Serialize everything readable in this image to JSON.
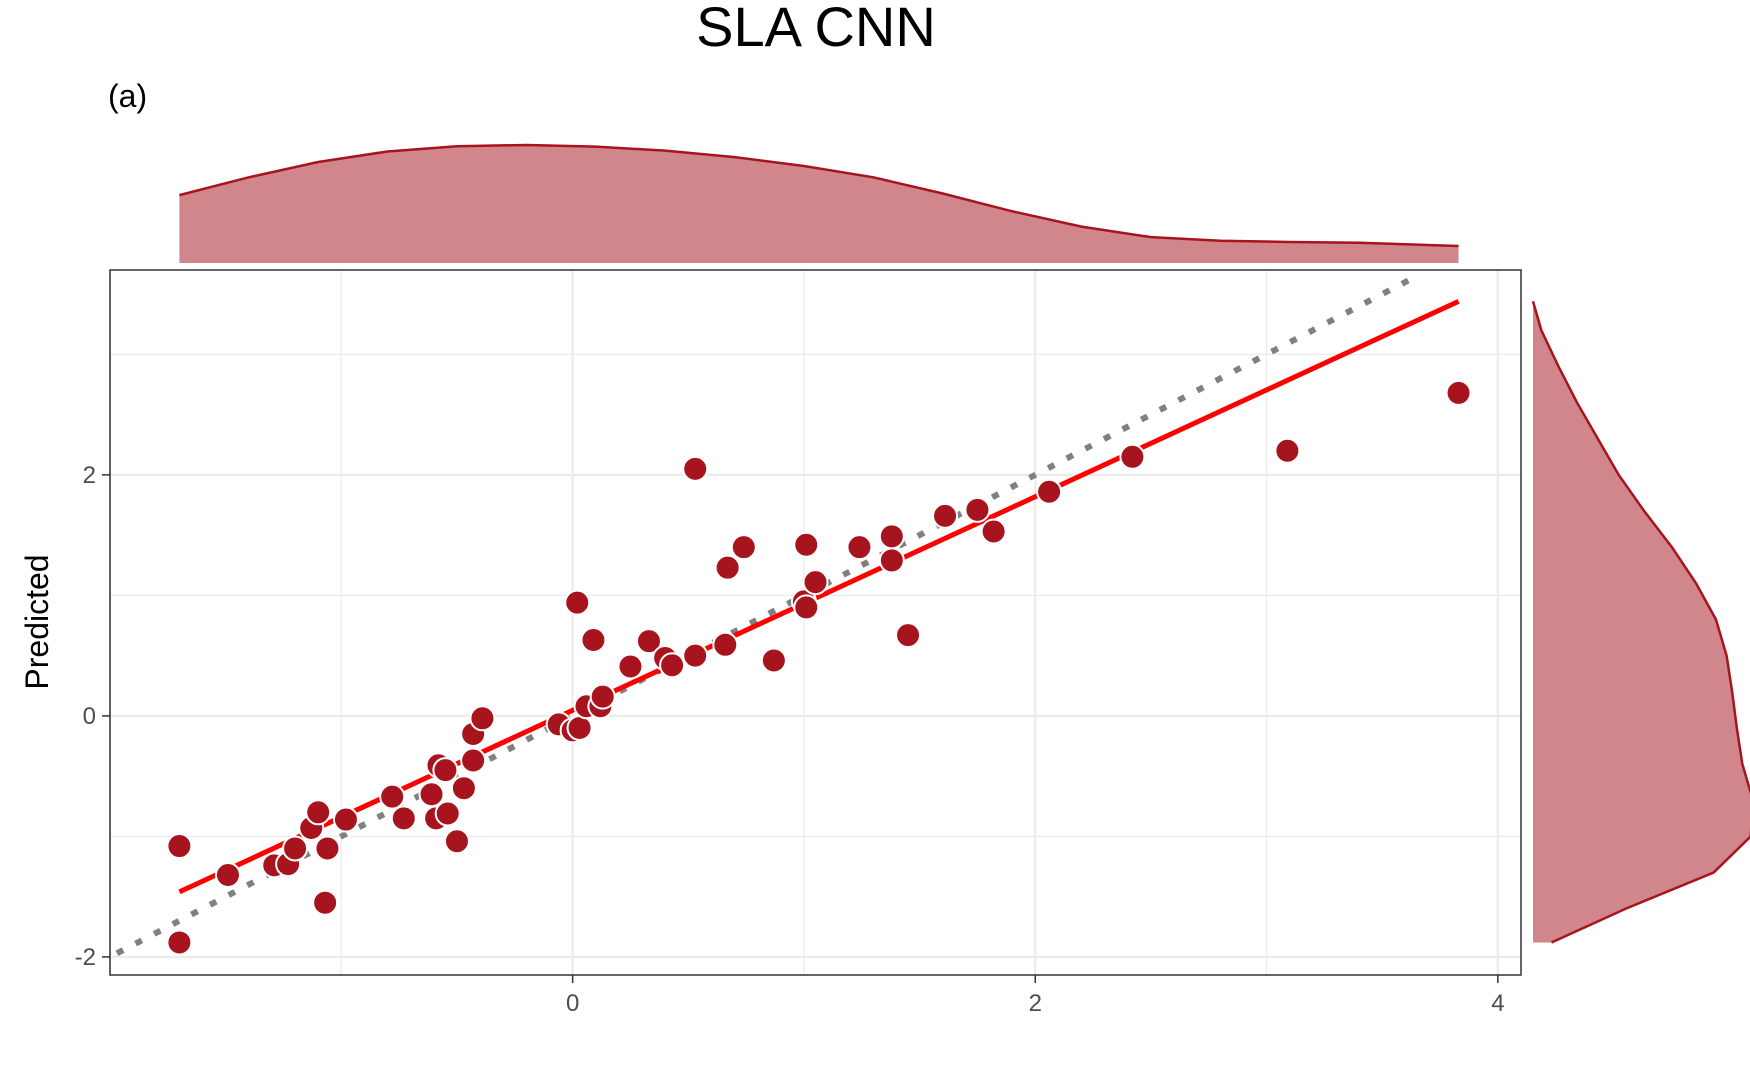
{
  "title": "SLA CNN",
  "panel_label": "(a)",
  "colors": {
    "points": "#a8141e",
    "fit_line": "#ff0000",
    "identity_line": "#808080",
    "density_fill": "#d1868b",
    "density_stroke": "#a8141e",
    "grid": "#ebebeb"
  },
  "chart_data": {
    "type": "scatter",
    "title": "SLA CNN",
    "xlabel": "",
    "ylabel": "Predicted",
    "xlim": [
      -2.0,
      4.1
    ],
    "ylim": [
      -2.15,
      3.7
    ],
    "x_ticks": [
      0,
      2,
      4
    ],
    "y_ticks": [
      -2,
      0,
      2
    ],
    "grid": true,
    "marginal_densities": [
      "top",
      "right"
    ],
    "points": [
      [
        -1.7,
        -1.08
      ],
      [
        -1.7,
        -1.88
      ],
      [
        -1.49,
        -1.32
      ],
      [
        -1.29,
        -1.24
      ],
      [
        -1.23,
        -1.23
      ],
      [
        -1.2,
        -1.1
      ],
      [
        -1.13,
        -0.93
      ],
      [
        -1.1,
        -0.8
      ],
      [
        -1.07,
        -1.55
      ],
      [
        -1.06,
        -1.1
      ],
      [
        -0.98,
        -0.86
      ],
      [
        -0.78,
        -0.67
      ],
      [
        -0.73,
        -0.85
      ],
      [
        -0.61,
        -0.65
      ],
      [
        -0.59,
        -0.85
      ],
      [
        -0.58,
        -0.41
      ],
      [
        -0.55,
        -0.45
      ],
      [
        -0.54,
        -0.81
      ],
      [
        -0.5,
        -1.04
      ],
      [
        -0.47,
        -0.6
      ],
      [
        -0.43,
        -0.37
      ],
      [
        -0.43,
        -0.15
      ],
      [
        -0.39,
        -0.02
      ],
      [
        -0.06,
        -0.07
      ],
      [
        0.0,
        -0.12
      ],
      [
        0.03,
        -0.1
      ],
      [
        0.06,
        0.08
      ],
      [
        0.12,
        0.08
      ],
      [
        0.13,
        0.16
      ],
      [
        0.02,
        0.94
      ],
      [
        0.09,
        0.63
      ],
      [
        0.25,
        0.41
      ],
      [
        0.33,
        0.62
      ],
      [
        0.4,
        0.48
      ],
      [
        0.43,
        0.42
      ],
      [
        0.53,
        0.5
      ],
      [
        0.53,
        2.05
      ],
      [
        0.66,
        0.59
      ],
      [
        0.67,
        1.23
      ],
      [
        0.74,
        1.4
      ],
      [
        0.87,
        0.46
      ],
      [
        1.0,
        0.95
      ],
      [
        1.01,
        0.9
      ],
      [
        1.01,
        1.42
      ],
      [
        1.05,
        1.11
      ],
      [
        1.24,
        1.4
      ],
      [
        1.38,
        1.29
      ],
      [
        1.38,
        1.49
      ],
      [
        1.45,
        0.67
      ],
      [
        1.61,
        1.66
      ],
      [
        1.75,
        1.71
      ],
      [
        1.82,
        1.53
      ],
      [
        2.06,
        1.86
      ],
      [
        2.42,
        2.15
      ],
      [
        3.09,
        2.2
      ],
      [
        3.83,
        2.68
      ]
    ],
    "fit_line": {
      "x": [
        -1.7,
        3.83
      ],
      "y": [
        -1.46,
        3.44
      ]
    },
    "identity_line": {
      "x": [
        -1.97,
        3.66
      ],
      "y": [
        -1.97,
        3.66
      ]
    },
    "density_x": {
      "x": [
        -1.7,
        -1.4,
        -1.1,
        -0.8,
        -0.5,
        -0.2,
        0.1,
        0.4,
        0.7,
        1.0,
        1.3,
        1.6,
        1.9,
        2.2,
        2.5,
        2.8,
        3.1,
        3.4,
        3.83
      ],
      "density": [
        0.168,
        0.212,
        0.25,
        0.276,
        0.289,
        0.292,
        0.288,
        0.278,
        0.262,
        0.24,
        0.212,
        0.172,
        0.128,
        0.09,
        0.064,
        0.055,
        0.052,
        0.05,
        0.042
      ]
    },
    "density_y": {
      "y": [
        -1.88,
        -1.6,
        -1.3,
        -1.0,
        -0.7,
        -0.4,
        -0.1,
        0.2,
        0.5,
        0.8,
        1.1,
        1.4,
        1.7,
        2.0,
        2.3,
        2.6,
        2.9,
        3.2,
        3.44
      ],
      "density": [
        0.04,
        0.2,
        0.39,
        0.47,
        0.475,
        0.452,
        0.44,
        0.43,
        0.418,
        0.395,
        0.352,
        0.3,
        0.24,
        0.185,
        0.14,
        0.095,
        0.055,
        0.018,
        0.0
      ]
    }
  }
}
